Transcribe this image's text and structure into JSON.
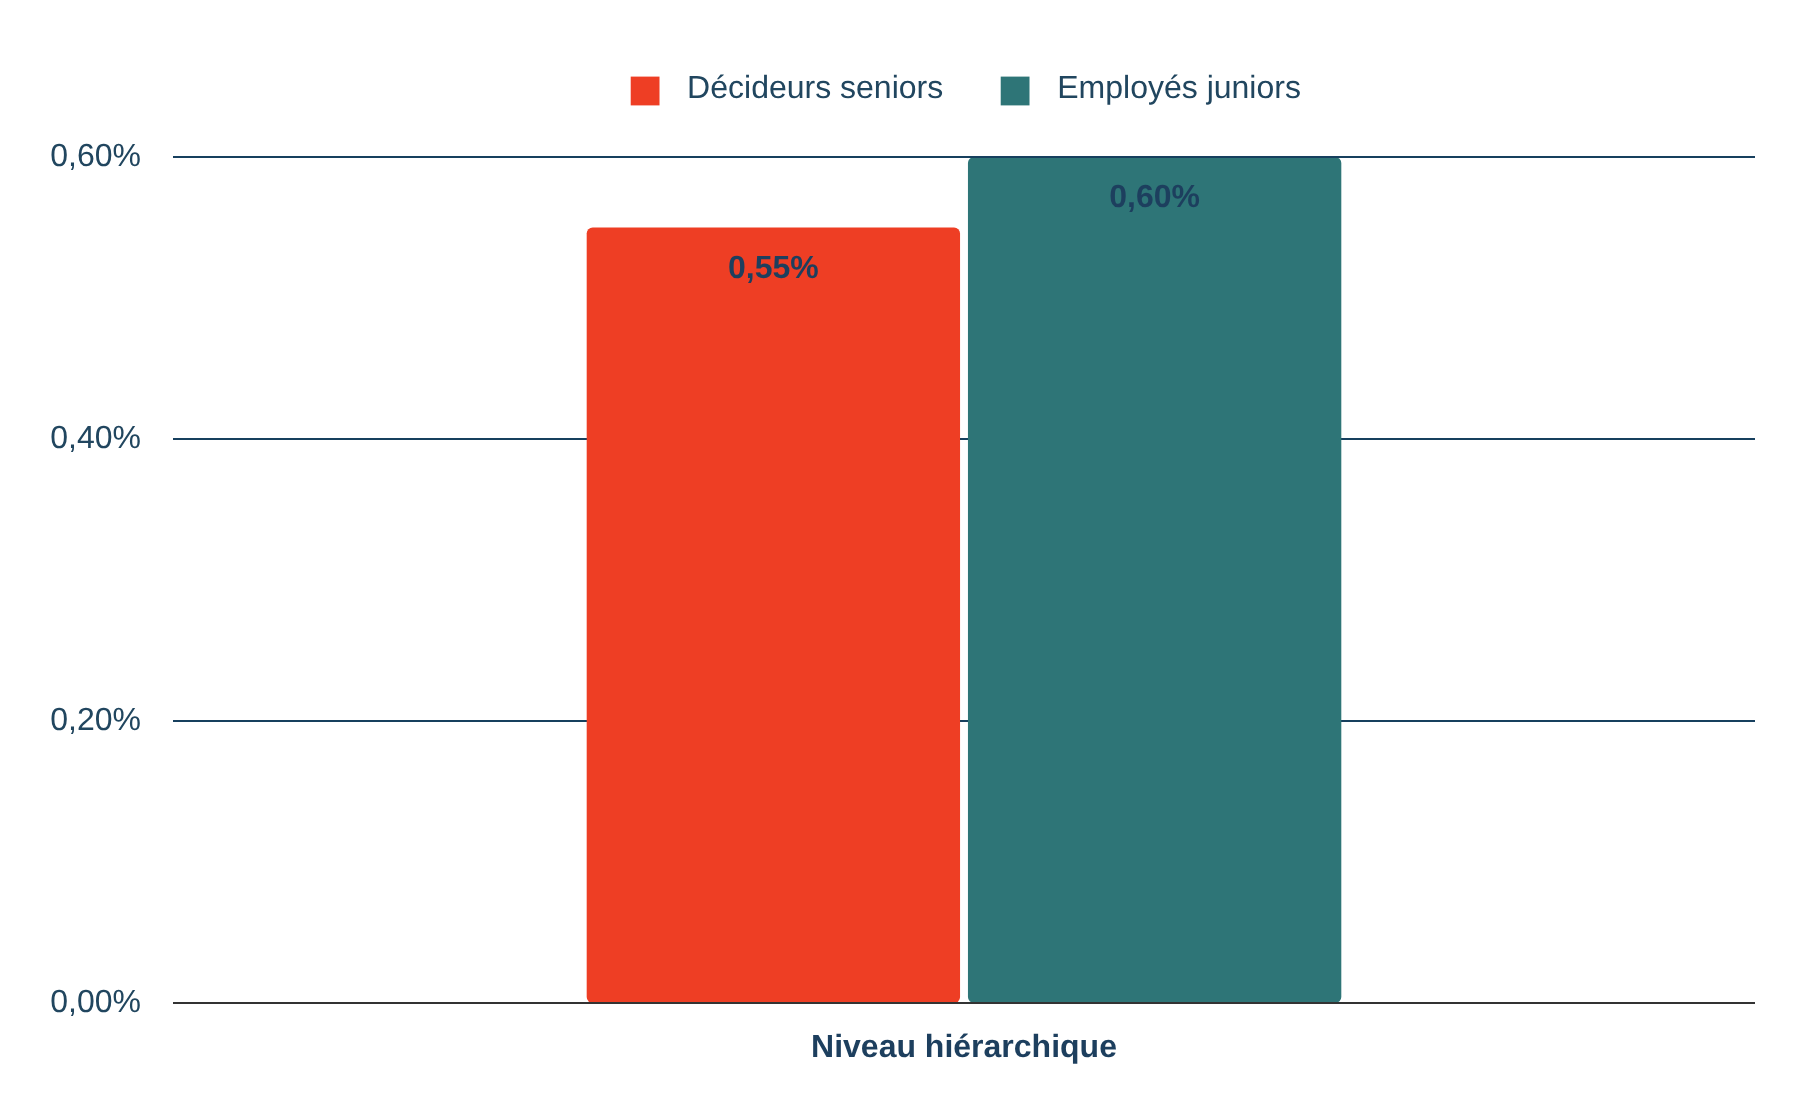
{
  "chart_data": {
    "type": "bar",
    "xlabel": "Niveau hiérarchique",
    "categories": [
      null
    ],
    "series": [
      {
        "name": "Décideurs seniors",
        "color": "#ee3e24",
        "values": [
          0.55
        ],
        "value_labels": [
          "0,55%"
        ]
      },
      {
        "name": "Employés juniors",
        "color": "#2e7577",
        "values": [
          0.6
        ],
        "value_labels": [
          "0,60%"
        ]
      }
    ],
    "ylim": [
      0,
      0.6
    ],
    "yticks": [
      {
        "value": 0,
        "label": "0,00%"
      },
      {
        "value": 0.2,
        "label": "0,20%"
      },
      {
        "value": 0.4,
        "label": "0,40%"
      },
      {
        "value": 0.6,
        "label": "0,60%"
      }
    ],
    "grid": "y",
    "legend": "top"
  }
}
